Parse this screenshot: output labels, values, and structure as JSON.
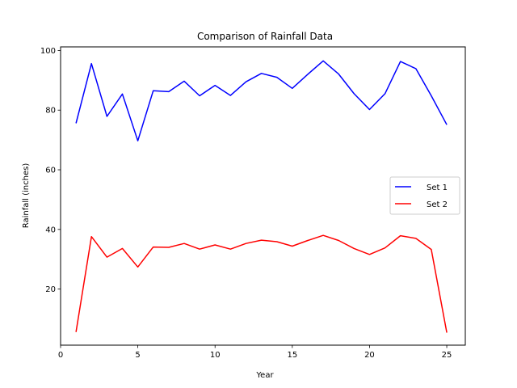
{
  "chart_data": {
    "type": "line",
    "title": "Comparison of Rainfall Data",
    "xlabel": "Year",
    "ylabel": "Rainfall (inches)",
    "x": [
      1,
      2,
      3,
      4,
      5,
      6,
      7,
      8,
      9,
      10,
      11,
      12,
      13,
      14,
      15,
      16,
      17,
      18,
      19,
      20,
      21,
      22,
      23,
      24,
      25
    ],
    "xlim": [
      0,
      26.2
    ],
    "ylim": [
      1.2,
      101.2
    ],
    "xticks": [
      0,
      5,
      10,
      15,
      20,
      25
    ],
    "yticks": [
      20,
      40,
      60,
      80,
      100
    ],
    "grid": false,
    "legend_position": "center-right",
    "series": [
      {
        "name": "Set 1",
        "color": "#0000ff",
        "values": [
          75.6,
          95.6,
          77.9,
          85.4,
          69.7,
          86.5,
          86.2,
          89.7,
          84.8,
          88.3,
          84.9,
          89.5,
          92.3,
          91.0,
          87.3,
          92.0,
          96.5,
          92.1,
          85.5,
          80.2,
          85.5,
          96.3,
          93.9,
          84.8,
          75.1
        ]
      },
      {
        "name": "Set 2",
        "color": "#ff0000",
        "values": [
          5.6,
          37.6,
          30.7,
          33.6,
          27.4,
          34.1,
          34.0,
          35.3,
          33.4,
          34.8,
          33.4,
          35.3,
          36.4,
          35.9,
          34.4,
          36.3,
          38.0,
          36.3,
          33.6,
          31.6,
          33.8,
          37.9,
          37.0,
          33.3,
          5.4
        ]
      }
    ]
  }
}
